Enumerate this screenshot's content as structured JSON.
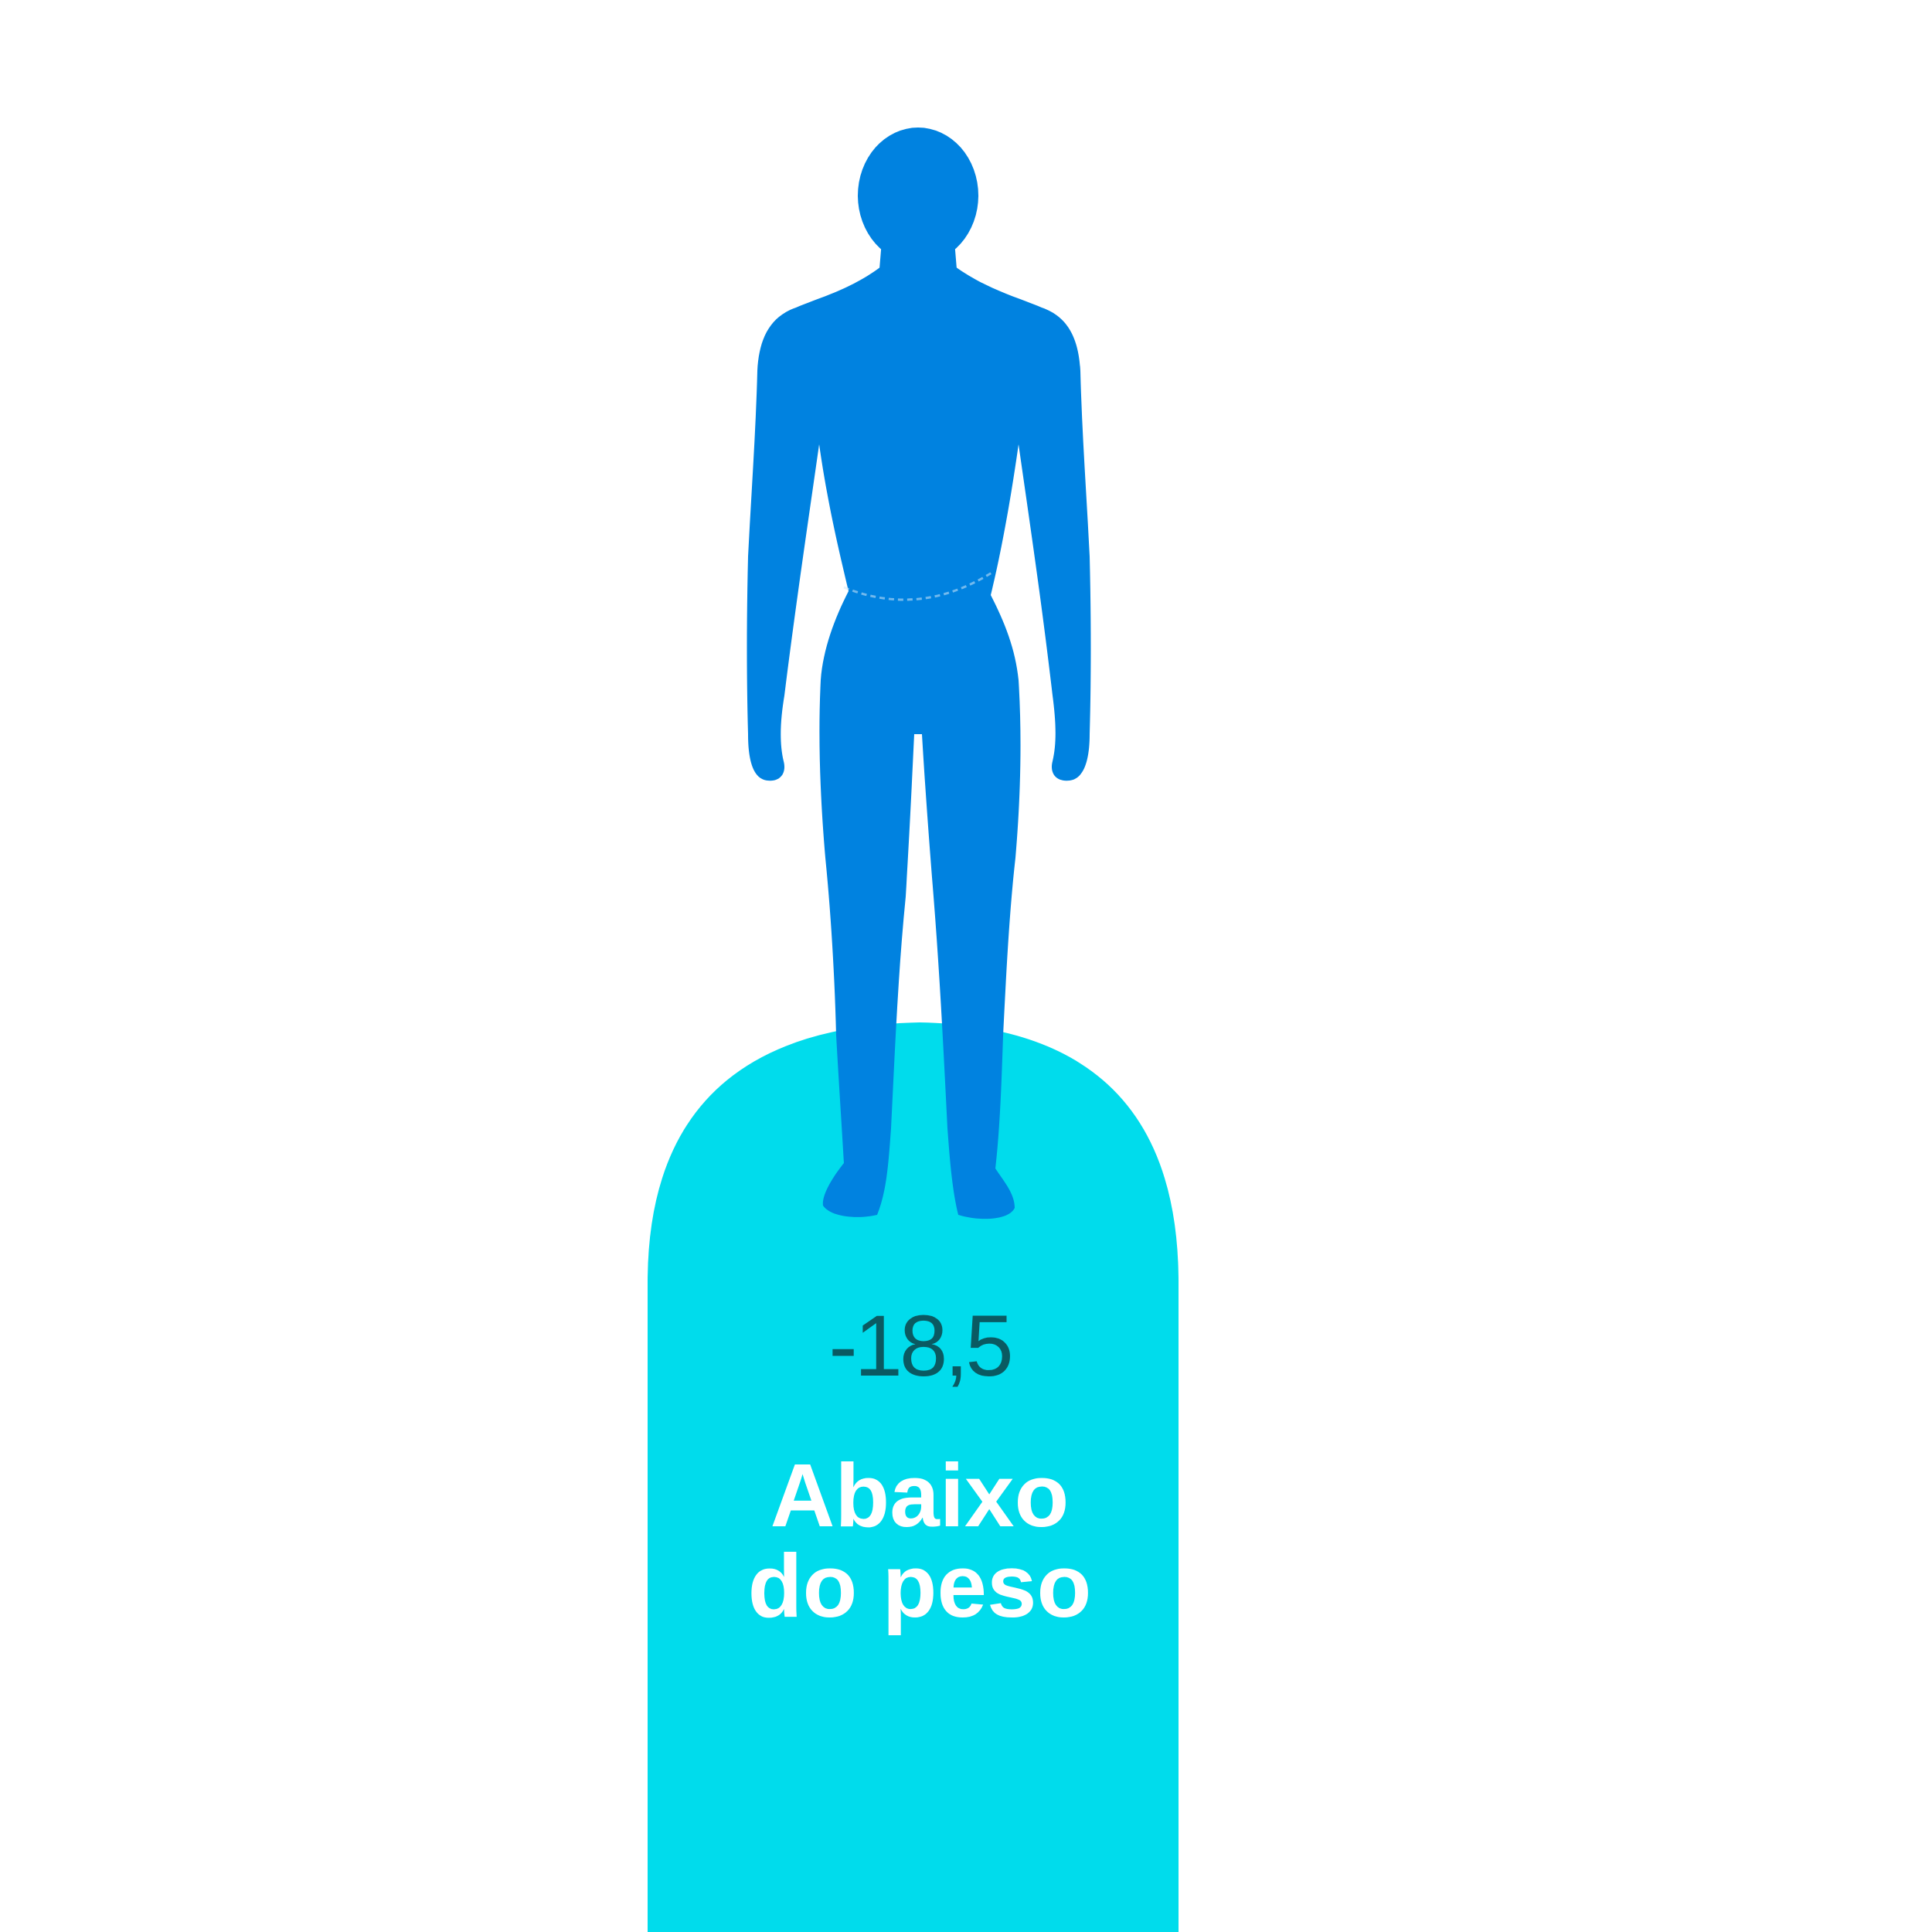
{
  "category": {
    "bmi_value": "-18,5",
    "label_line_1": "Abaixo",
    "label_line_2": "do peso"
  },
  "colors": {
    "pillar": "#00dcec",
    "figure": "#0082e0",
    "value_text": "#0a5a62",
    "label_text": "#ffffff"
  },
  "icons": {
    "figure": "human-silhouette-icon"
  }
}
